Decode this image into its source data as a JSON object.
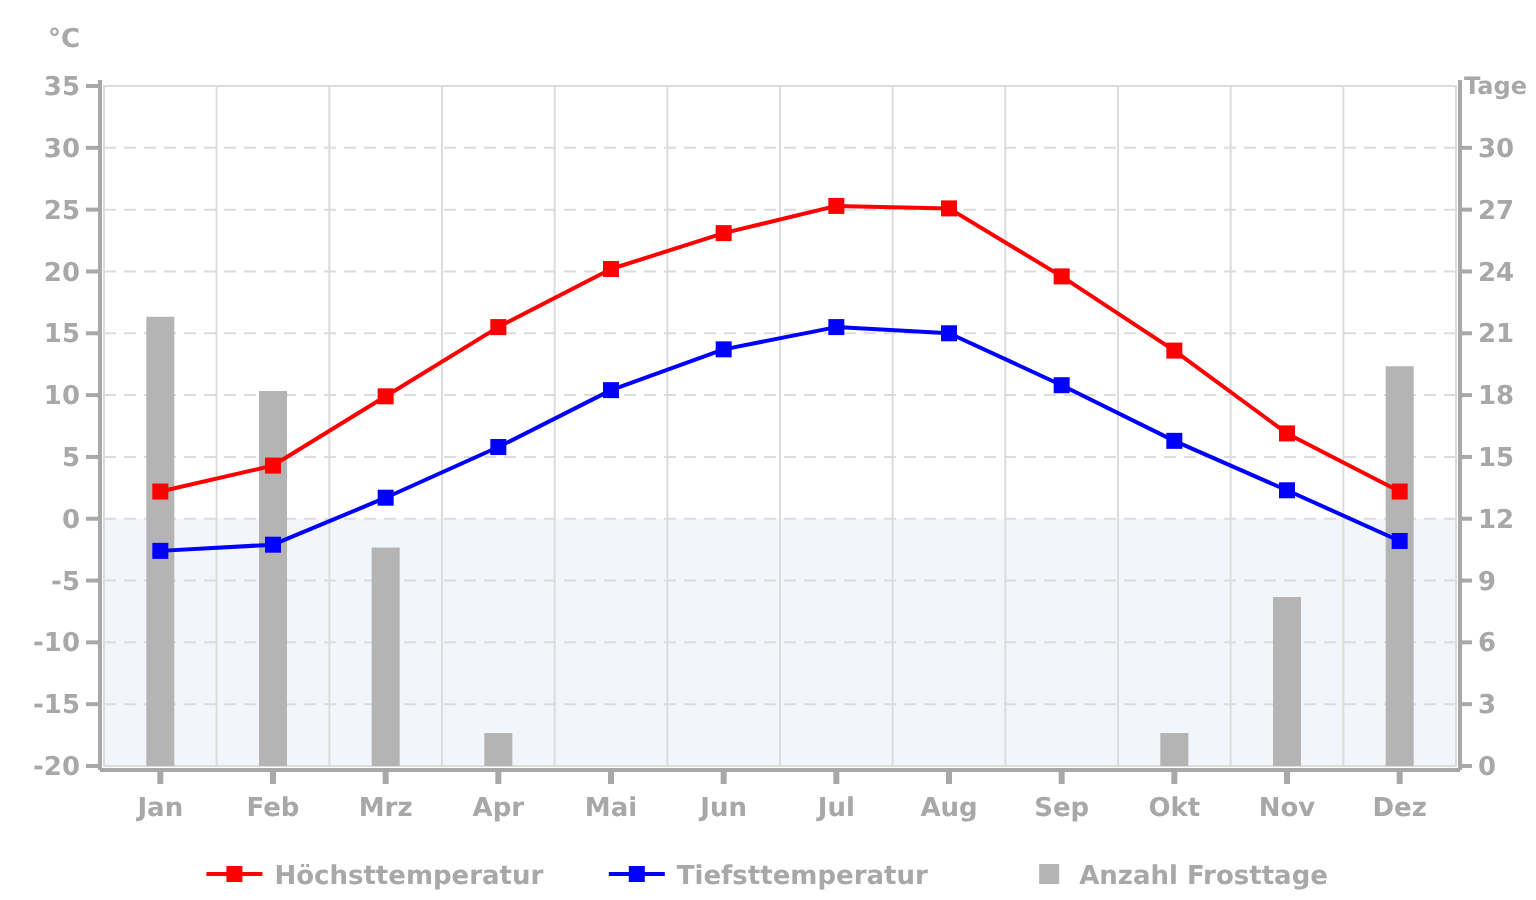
{
  "chart_data": {
    "type": "line",
    "ylabel": "°C",
    "y2label": "Tage",
    "categories": [
      "Jan",
      "Feb",
      "Mrz",
      "Apr",
      "Mai",
      "Jun",
      "Jul",
      "Aug",
      "Sep",
      "Okt",
      "Nov",
      "Dez"
    ],
    "series": [
      {
        "name": "Höchsttemperatur",
        "color": "#ff0000",
        "values": [
          2.2,
          4.3,
          9.9,
          15.5,
          20.2,
          23.1,
          25.3,
          25.1,
          19.6,
          13.6,
          6.9,
          2.2
        ]
      },
      {
        "name": "Tiefsttemperatur",
        "color": "#0000ff",
        "values": [
          -2.6,
          -2.1,
          1.7,
          5.8,
          10.4,
          13.7,
          15.5,
          15.0,
          10.8,
          6.3,
          2.3,
          -1.8
        ]
      },
      {
        "name": "Anzahl Frosttage",
        "type": "bar",
        "axis": "y2",
        "color": "#b4b4b4",
        "values": [
          21.8,
          18.2,
          10.6,
          1.6,
          0,
          0,
          0,
          0,
          0,
          1.6,
          8.2,
          19.4
        ]
      }
    ],
    "ylim": [
      -20,
      35
    ],
    "yticks": [
      -20,
      -15,
      -10,
      -5,
      0,
      5,
      10,
      15,
      20,
      25,
      30,
      35
    ],
    "y2lim": [
      0,
      33
    ],
    "y2ticks": [
      0,
      3,
      6,
      9,
      12,
      15,
      18,
      21,
      24,
      27,
      30
    ],
    "bands": [
      {
        "axis": "y",
        "from": -20,
        "to": 0,
        "color": "#f2f5fa"
      }
    ],
    "grid": true,
    "marker": "square",
    "line_style": "solid",
    "legend": "bottom"
  }
}
